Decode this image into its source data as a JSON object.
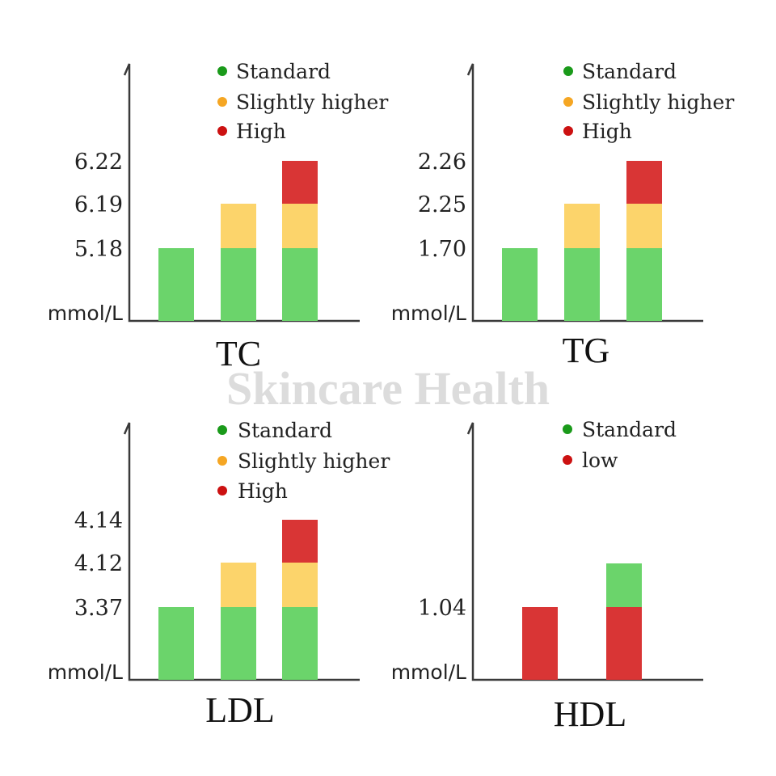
{
  "watermark": "Skincare Health",
  "unit": "mmol/L",
  "colors": {
    "standard": "#6bd46b",
    "slightly_higher": "#fcd46b",
    "high": "#d93535",
    "low": "#d93535",
    "dot_standard": "#1a9a1a",
    "dot_slightly_higher": "#f5a623",
    "dot_high": "#cc1111",
    "dot_low": "#cc1111"
  },
  "chart_data": [
    {
      "type": "bar",
      "title": "TC",
      "ylabel": "mmol/L",
      "yticks": [
        "6.22",
        "6.19",
        "5.18"
      ],
      "legend": [
        {
          "label": "Standard",
          "key": "standard"
        },
        {
          "label": "Slightly higher",
          "key": "slightly_higher"
        },
        {
          "label": "High",
          "key": "high"
        }
      ],
      "stacked": true,
      "bars": [
        [
          {
            "key": "standard",
            "top": 5.18
          }
        ],
        [
          {
            "key": "standard",
            "top": 5.18
          },
          {
            "key": "slightly_higher",
            "top": 6.19
          }
        ],
        [
          {
            "key": "standard",
            "top": 5.18
          },
          {
            "key": "slightly_higher",
            "top": 6.19
          },
          {
            "key": "high",
            "top": 6.22
          }
        ]
      ]
    },
    {
      "type": "bar",
      "title": "TG",
      "ylabel": "mmol/L",
      "yticks": [
        "2.26",
        "2.25",
        "1.70"
      ],
      "legend": [
        {
          "label": "Standard",
          "key": "standard"
        },
        {
          "label": "Slightly higher",
          "key": "slightly_higher"
        },
        {
          "label": "High",
          "key": "high"
        }
      ],
      "stacked": true,
      "bars": [
        [
          {
            "key": "standard",
            "top": 1.7
          }
        ],
        [
          {
            "key": "standard",
            "top": 1.7
          },
          {
            "key": "slightly_higher",
            "top": 2.25
          }
        ],
        [
          {
            "key": "standard",
            "top": 1.7
          },
          {
            "key": "slightly_higher",
            "top": 2.25
          },
          {
            "key": "high",
            "top": 2.26
          }
        ]
      ]
    },
    {
      "type": "bar",
      "title": "LDL",
      "ylabel": "mmol/L",
      "yticks": [
        "4.14",
        "4.12",
        "3.37"
      ],
      "legend": [
        {
          "label": "Standard",
          "key": "standard"
        },
        {
          "label": "Slightly higher",
          "key": "slightly_higher"
        },
        {
          "label": "High",
          "key": "high"
        }
      ],
      "stacked": true,
      "bars": [
        [
          {
            "key": "standard",
            "top": 3.37
          }
        ],
        [
          {
            "key": "standard",
            "top": 3.37
          },
          {
            "key": "slightly_higher",
            "top": 4.12
          }
        ],
        [
          {
            "key": "standard",
            "top": 3.37
          },
          {
            "key": "slightly_higher",
            "top": 4.12
          },
          {
            "key": "high",
            "top": 4.14
          }
        ]
      ]
    },
    {
      "type": "bar",
      "title": "HDL",
      "ylabel": "mmol/L",
      "yticks": [
        "1.04"
      ],
      "legend": [
        {
          "label": "Standard",
          "key": "standard"
        },
        {
          "label": "low",
          "key": "low"
        }
      ],
      "stacked": true,
      "bars": [
        [
          {
            "key": "low",
            "top": 1.04
          }
        ],
        [
          {
            "key": "low",
            "top": 1.04
          },
          {
            "key": "standard",
            "top": "above 1.04"
          }
        ]
      ]
    }
  ]
}
